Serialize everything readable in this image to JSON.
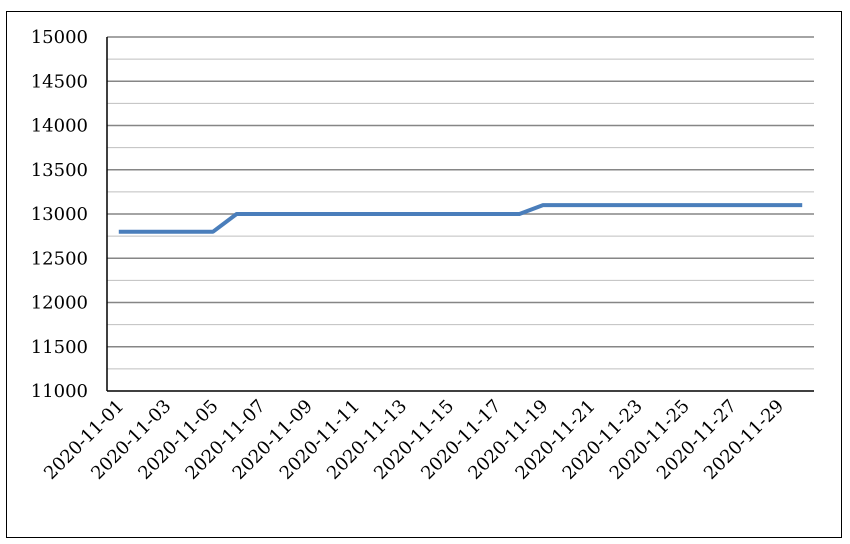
{
  "chart_data": {
    "type": "line",
    "x": [
      "2020-11-01",
      "2020-11-02",
      "2020-11-03",
      "2020-11-04",
      "2020-11-05",
      "2020-11-06",
      "2020-11-07",
      "2020-11-08",
      "2020-11-09",
      "2020-11-10",
      "2020-11-11",
      "2020-11-12",
      "2020-11-13",
      "2020-11-14",
      "2020-11-15",
      "2020-11-16",
      "2020-11-17",
      "2020-11-18",
      "2020-11-19",
      "2020-11-20",
      "2020-11-21",
      "2020-11-22",
      "2020-11-23",
      "2020-11-24",
      "2020-11-25",
      "2020-11-26",
      "2020-11-27",
      "2020-11-28",
      "2020-11-29",
      "2020-11-30"
    ],
    "x_tick_labels": [
      "2020-11-01",
      "2020-11-03",
      "2020-11-05",
      "2020-11-07",
      "2020-11-09",
      "2020-11-11",
      "2020-11-13",
      "2020-11-15",
      "2020-11-17",
      "2020-11-19",
      "2020-11-21",
      "2020-11-23",
      "2020-11-25",
      "2020-11-27",
      "2020-11-29"
    ],
    "series": [
      {
        "values": [
          12800,
          12800,
          12800,
          12800,
          12800,
          13000,
          13000,
          13000,
          13000,
          13000,
          13000,
          13000,
          13000,
          13000,
          13000,
          13000,
          13000,
          13000,
          13100,
          13100,
          13100,
          13100,
          13100,
          13100,
          13100,
          13100,
          13100,
          13100,
          13100,
          13100
        ],
        "color": "#4a7ebb"
      }
    ],
    "ylim": [
      11000,
      15000
    ],
    "y_ticks": [
      "11000",
      "11500",
      "12000",
      "12500",
      "13000",
      "13500",
      "14000",
      "14500",
      "15000"
    ],
    "y_minor_step": 250,
    "grid": true,
    "legend": "none"
  }
}
